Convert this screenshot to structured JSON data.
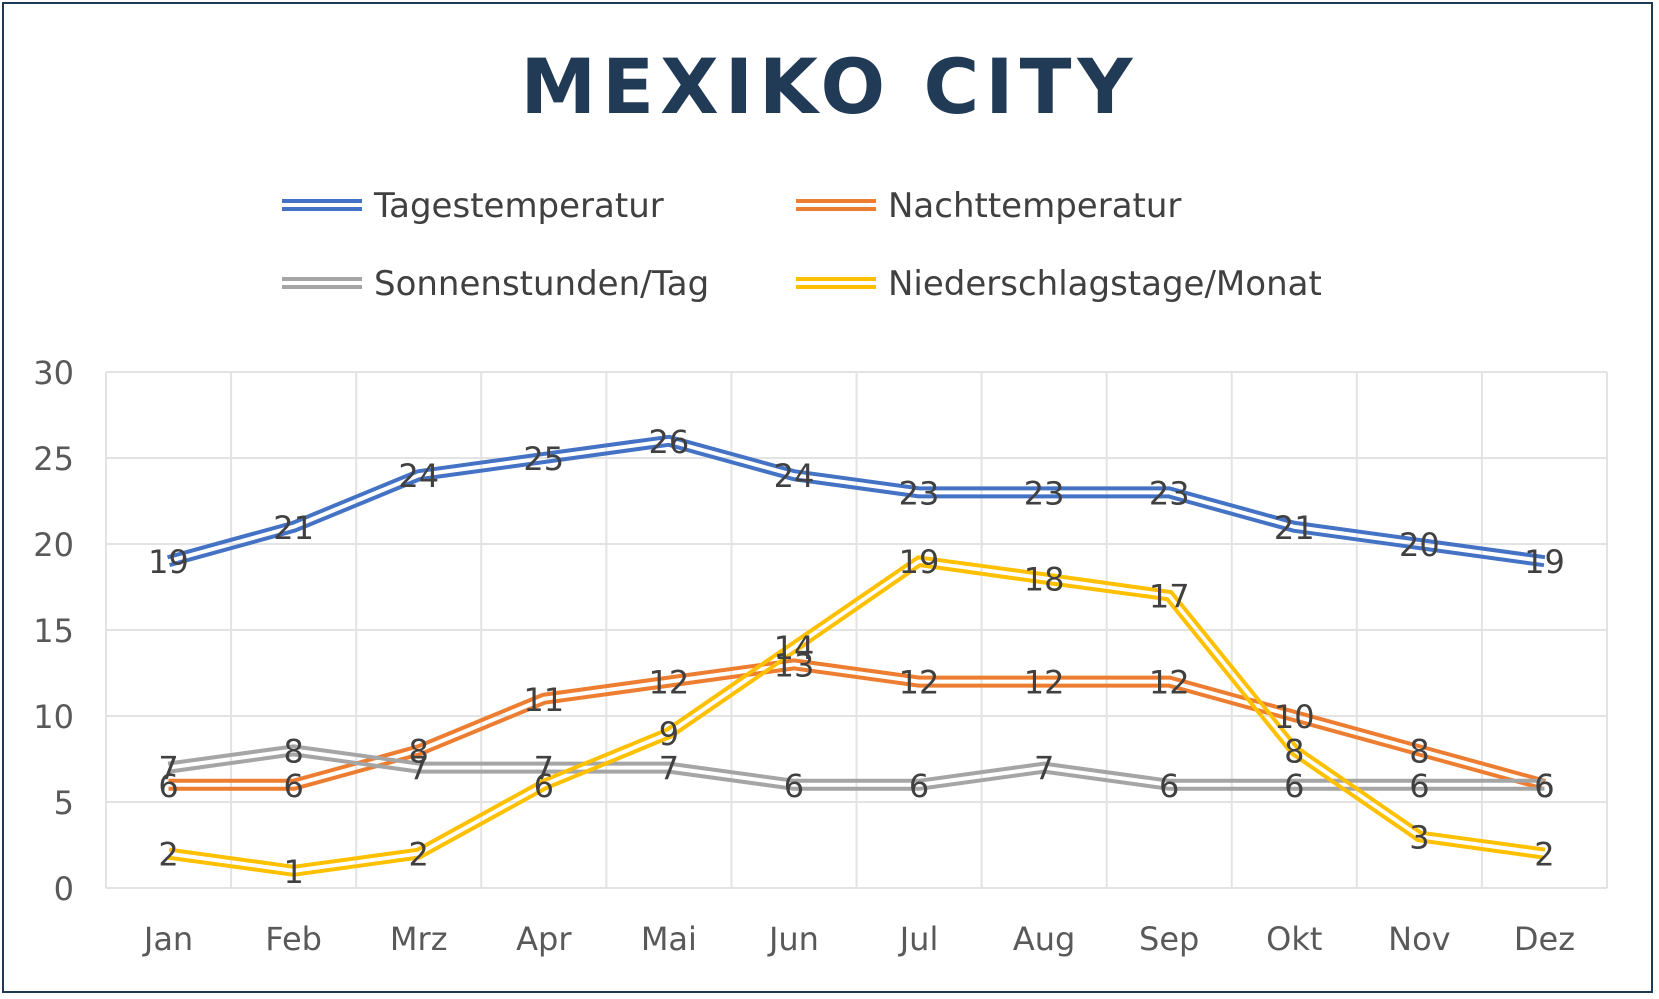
{
  "chart_data": {
    "type": "line",
    "title": "MEXIKO CITY",
    "categories": [
      "Jan",
      "Feb",
      "Mrz",
      "Apr",
      "Mai",
      "Jun",
      "Jul",
      "Aug",
      "Sep",
      "Okt",
      "Nov",
      "Dez"
    ],
    "ylim": [
      0,
      30
    ],
    "yticks": [
      0,
      5,
      10,
      15,
      20,
      25,
      30
    ],
    "grid": true,
    "legend_position": "top",
    "series": [
      {
        "name": "Tagestemperatur",
        "color": "#4472C4",
        "values": [
          19,
          21,
          24,
          25,
          26,
          24,
          23,
          23,
          23,
          21,
          20,
          19
        ]
      },
      {
        "name": "Nachttemperatur",
        "color": "#ED7D31",
        "values": [
          6,
          6,
          8,
          11,
          12,
          13,
          12,
          12,
          12,
          10,
          8,
          6
        ]
      },
      {
        "name": "Sonnenstunden/Tag",
        "color": "#A5A5A5",
        "values": [
          7,
          8,
          7,
          7,
          7,
          6,
          6,
          7,
          6,
          6,
          6,
          6
        ]
      },
      {
        "name": "Niederschlagstage/Monat",
        "color": "#FFC000",
        "values": [
          2,
          1,
          2,
          6,
          9,
          14,
          19,
          18,
          17,
          8,
          3,
          2
        ]
      }
    ]
  }
}
